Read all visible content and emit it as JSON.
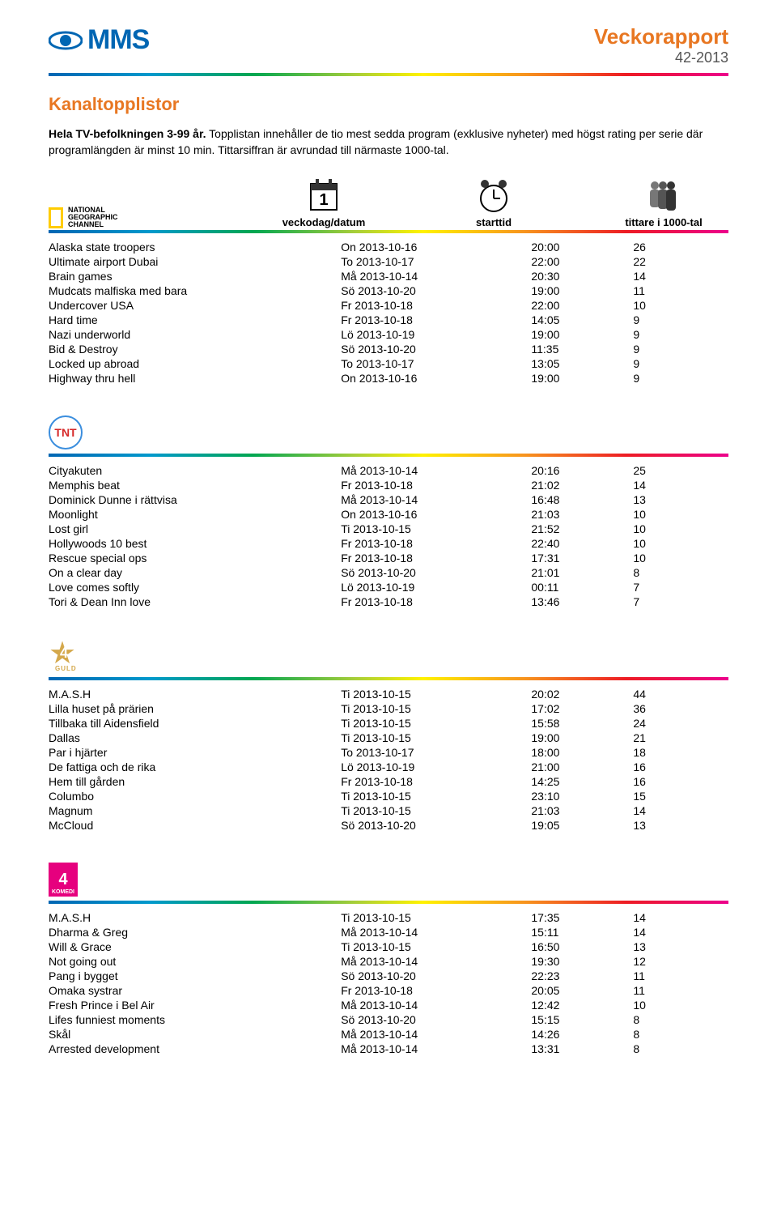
{
  "header": {
    "logo_text": "MMS",
    "report_title": "Veckorapport",
    "week": "42-2013"
  },
  "section_title": "Kanaltopplistor",
  "intro_bold": "Hela TV-befolkningen 3-99 år.",
  "intro_rest": " Topplistan innehåller de tio mest sedda program (exklusive nyheter) med högst rating per serie där programlängden är minst 10 min. Tittarsiffran är avrundad till närmaste 1000-tal.",
  "legend": {
    "weekday": "veckodag/datum",
    "starttime": "starttid",
    "viewers": "tittare i 1000-tal"
  },
  "colors": {
    "accent_orange": "#e87722",
    "brand_blue": "#0066b3",
    "pink": "#e6007e",
    "gold": "#d4a84b"
  },
  "channels": [
    {
      "id": "ngc",
      "logo_label": "NATIONAL GEOGRAPHIC CHANNEL",
      "rows": [
        {
          "program": "Alaska state troopers",
          "date": "On 2013-10-16",
          "time": "20:00",
          "viewers": "26"
        },
        {
          "program": "Ultimate airport Dubai",
          "date": "To 2013-10-17",
          "time": "22:00",
          "viewers": "22"
        },
        {
          "program": "Brain games",
          "date": "Må 2013-10-14",
          "time": "20:30",
          "viewers": "14"
        },
        {
          "program": "Mudcats malfiska med bara",
          "date": "Sö 2013-10-20",
          "time": "19:00",
          "viewers": "11"
        },
        {
          "program": "Undercover USA",
          "date": "Fr 2013-10-18",
          "time": "22:00",
          "viewers": "10"
        },
        {
          "program": "Hard time",
          "date": "Fr 2013-10-18",
          "time": "14:05",
          "viewers": "9"
        },
        {
          "program": "Nazi underworld",
          "date": "Lö 2013-10-19",
          "time": "19:00",
          "viewers": "9"
        },
        {
          "program": "Bid & Destroy",
          "date": "Sö 2013-10-20",
          "time": "11:35",
          "viewers": "9"
        },
        {
          "program": "Locked up abroad",
          "date": "To 2013-10-17",
          "time": "13:05",
          "viewers": "9"
        },
        {
          "program": "Highway thru hell",
          "date": "On 2013-10-16",
          "time": "19:00",
          "viewers": "9"
        }
      ]
    },
    {
      "id": "tnt",
      "logo_label": "TNT",
      "rows": [
        {
          "program": "Cityakuten",
          "date": "Må 2013-10-14",
          "time": "20:16",
          "viewers": "25"
        },
        {
          "program": "Memphis beat",
          "date": "Fr 2013-10-18",
          "time": "21:02",
          "viewers": "14"
        },
        {
          "program": "Dominick Dunne i rättvisa",
          "date": "Må 2013-10-14",
          "time": "16:48",
          "viewers": "13"
        },
        {
          "program": "Moonlight",
          "date": "On 2013-10-16",
          "time": "21:03",
          "viewers": "10"
        },
        {
          "program": "Lost girl",
          "date": "Ti 2013-10-15",
          "time": "21:52",
          "viewers": "10"
        },
        {
          "program": "Hollywoods 10 best",
          "date": "Fr 2013-10-18",
          "time": "22:40",
          "viewers": "10"
        },
        {
          "program": "Rescue special ops",
          "date": "Fr 2013-10-18",
          "time": "17:31",
          "viewers": "10"
        },
        {
          "program": "On a clear day",
          "date": "Sö 2013-10-20",
          "time": "21:01",
          "viewers": "8"
        },
        {
          "program": "Love comes softly",
          "date": "Lö 2013-10-19",
          "time": "00:11",
          "viewers": "7"
        },
        {
          "program": "Tori & Dean Inn love",
          "date": "Fr 2013-10-18",
          "time": "13:46",
          "viewers": "7"
        }
      ]
    },
    {
      "id": "guld",
      "logo_label": "4 GULD",
      "rows": [
        {
          "program": "M.A.S.H",
          "date": "Ti 2013-10-15",
          "time": "20:02",
          "viewers": "44"
        },
        {
          "program": "Lilla huset på prärien",
          "date": "Ti 2013-10-15",
          "time": "17:02",
          "viewers": "36"
        },
        {
          "program": "Tillbaka till Aidensfield",
          "date": "Ti 2013-10-15",
          "time": "15:58",
          "viewers": "24"
        },
        {
          "program": "Dallas",
          "date": "Ti 2013-10-15",
          "time": "19:00",
          "viewers": "21"
        },
        {
          "program": "Par i hjärter",
          "date": "To 2013-10-17",
          "time": "18:00",
          "viewers": "18"
        },
        {
          "program": "De fattiga och de rika",
          "date": "Lö 2013-10-19",
          "time": "21:00",
          "viewers": "16"
        },
        {
          "program": "Hem till gården",
          "date": "Fr 2013-10-18",
          "time": "14:25",
          "viewers": "16"
        },
        {
          "program": "Columbo",
          "date": "Ti 2013-10-15",
          "time": "23:10",
          "viewers": "15"
        },
        {
          "program": "Magnum",
          "date": "Ti 2013-10-15",
          "time": "21:03",
          "viewers": "14"
        },
        {
          "program": "McCloud",
          "date": "Sö 2013-10-20",
          "time": "19:05",
          "viewers": "13"
        }
      ]
    },
    {
      "id": "komedi",
      "logo_label": "4 KOMEDI",
      "rows": [
        {
          "program": "M.A.S.H",
          "date": "Ti 2013-10-15",
          "time": "17:35",
          "viewers": "14"
        },
        {
          "program": "Dharma & Greg",
          "date": "Må 2013-10-14",
          "time": "15:11",
          "viewers": "14"
        },
        {
          "program": "Will & Grace",
          "date": "Ti 2013-10-15",
          "time": "16:50",
          "viewers": "13"
        },
        {
          "program": "Not going out",
          "date": "Må 2013-10-14",
          "time": "19:30",
          "viewers": "12"
        },
        {
          "program": "Pang i bygget",
          "date": "Sö 2013-10-20",
          "time": "22:23",
          "viewers": "11"
        },
        {
          "program": "Omaka systrar",
          "date": "Fr 2013-10-18",
          "time": "20:05",
          "viewers": "11"
        },
        {
          "program": "Fresh Prince i Bel Air",
          "date": "Må 2013-10-14",
          "time": "12:42",
          "viewers": "10"
        },
        {
          "program": "Lifes funniest moments",
          "date": "Sö 2013-10-20",
          "time": "15:15",
          "viewers": "8"
        },
        {
          "program": "Skål",
          "date": "Må 2013-10-14",
          "time": "14:26",
          "viewers": "8"
        },
        {
          "program": "Arrested development",
          "date": "Må 2013-10-14",
          "time": "13:31",
          "viewers": "8"
        }
      ]
    }
  ]
}
